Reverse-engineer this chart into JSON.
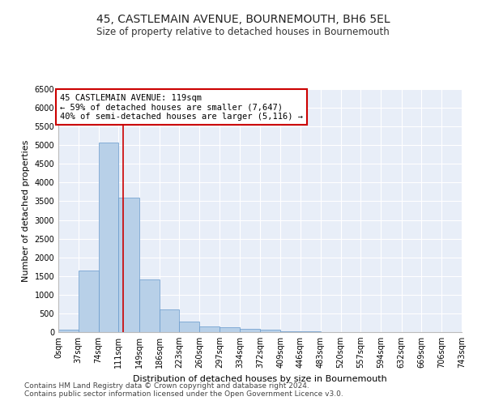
{
  "title": "45, CASTLEMAIN AVENUE, BOURNEMOUTH, BH6 5EL",
  "subtitle": "Size of property relative to detached houses in Bournemouth",
  "xlabel": "Distribution of detached houses by size in Bournemouth",
  "ylabel": "Number of detached properties",
  "bar_edges": [
    0,
    37,
    74,
    111,
    149,
    186,
    223,
    260,
    297,
    334,
    372,
    409,
    446,
    483,
    520,
    557,
    594,
    632,
    669,
    706,
    743
  ],
  "bar_heights": [
    60,
    1640,
    5060,
    3600,
    1400,
    610,
    290,
    155,
    120,
    90,
    65,
    30,
    15,
    10,
    5,
    3,
    2,
    1,
    1,
    0
  ],
  "bar_color": "#b8d0e8",
  "bar_edge_color": "#6699cc",
  "property_line_x": 119,
  "annotation_title": "45 CASTLEMAIN AVENUE: 119sqm",
  "annotation_line1": "← 59% of detached houses are smaller (7,647)",
  "annotation_line2": "40% of semi-detached houses are larger (5,116) →",
  "annotation_box_color": "#ffffff",
  "annotation_box_edgecolor": "#cc0000",
  "line_color": "#cc0000",
  "ylim": [
    0,
    6500
  ],
  "xlim": [
    0,
    743
  ],
  "yticks": [
    0,
    500,
    1000,
    1500,
    2000,
    2500,
    3000,
    3500,
    4000,
    4500,
    5000,
    5500,
    6000,
    6500
  ],
  "tick_labels": [
    "0sqm",
    "37sqm",
    "74sqm",
    "111sqm",
    "149sqm",
    "186sqm",
    "223sqm",
    "260sqm",
    "297sqm",
    "334sqm",
    "372sqm",
    "409sqm",
    "446sqm",
    "483sqm",
    "520sqm",
    "557sqm",
    "594sqm",
    "632sqm",
    "669sqm",
    "706sqm",
    "743sqm"
  ],
  "footer1": "Contains HM Land Registry data © Crown copyright and database right 2024.",
  "footer2": "Contains public sector information licensed under the Open Government Licence v3.0.",
  "plot_bg_color": "#e8eef8",
  "title_fontsize": 10,
  "subtitle_fontsize": 8.5,
  "axis_label_fontsize": 8,
  "tick_fontsize": 7,
  "annotation_fontsize": 7.5,
  "footer_fontsize": 6.5
}
